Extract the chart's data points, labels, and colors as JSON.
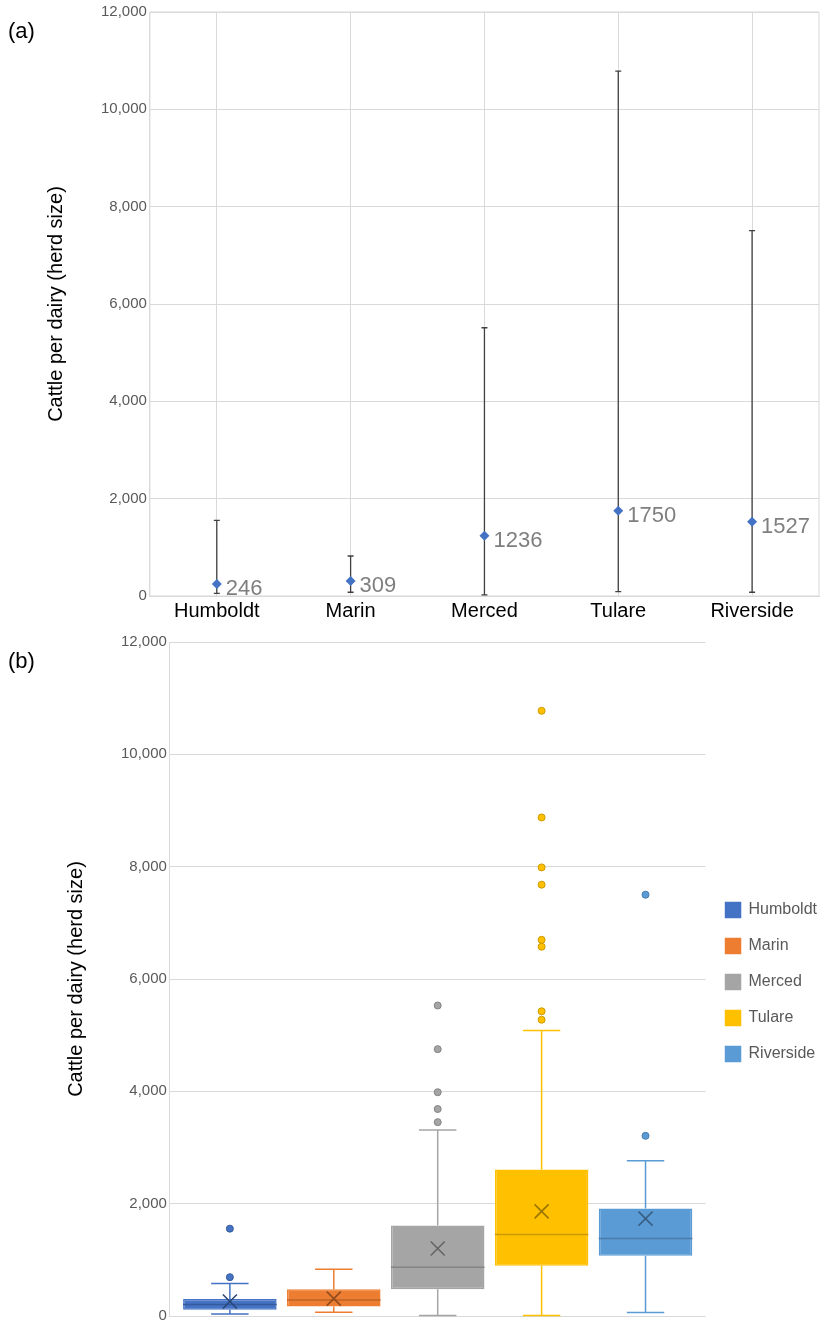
{
  "chart_data": [
    {
      "type": "scatter",
      "title": "(a)",
      "ylabel": "Cattle per dairy (herd size)",
      "categories": [
        "Humboldt",
        "Marin",
        "Merced",
        "Tulare",
        "Riverside"
      ],
      "series": [
        {
          "color": "#4472c4",
          "values": [
            246,
            309,
            1236,
            1750,
            1527
          ],
          "errors": [
            [
              55,
              1556
            ],
            [
              77,
              822
            ],
            [
              22,
              5512
            ],
            [
              88,
              10784
            ],
            [
              77,
              7507
            ]
          ]
        }
      ],
      "data_labels": true,
      "marker": "diamond",
      "ylim": [
        0,
        12000
      ],
      "yticks": [
        0,
        {
          "value": 2000,
          "label": "2,000"
        },
        {
          "value": 4000,
          "label": "4,000"
        },
        {
          "value": 6000,
          "label": "6,000"
        },
        {
          "value": 8000,
          "label": "8,000"
        },
        {
          "value": 10000,
          "label": "10,000"
        },
        {
          "value": 12000,
          "label": "12,000"
        }
      ],
      "grid": true
    },
    {
      "type": "box",
      "title": "(b)",
      "ylabel": "Cattle per dairy (herd size)",
      "categories": [
        null
      ],
      "series": [
        {
          "name": "Humboldt",
          "color": "#4472c4",
          "boxes": [
            {
              "low": 37,
              "q1": 111,
              "median": 204,
              "q3": 302,
              "high": 580,
              "mean": 259,
              "outliers": [
                691,
                1555
              ]
            }
          ]
        },
        {
          "name": "Marin",
          "color": "#ed7d31",
          "boxes": [
            {
              "low": 68,
              "q1": 167,
              "median": 284,
              "q3": 475,
              "high": 833,
              "mean": 309
            }
          ]
        },
        {
          "name": "Merced",
          "color": "#a5a5a5",
          "boxes": [
            {
              "low": 10,
              "q1": 475,
              "median": 870,
              "q3": 1610,
              "high": 3313,
              "mean": 1203,
              "outliers": [
                3451,
                3685,
                3984,
                4751,
                5528
              ]
            }
          ]
        },
        {
          "name": "Tulare",
          "color": "#ffc000",
          "boxes": [
            {
              "low": 10,
              "q1": 895,
              "median": 1450,
              "q3": 2610,
              "high": 5084,
              "mean": 1863,
              "outliers": [
                5275,
                5425,
                6575,
                6697,
                7679,
                7987,
                8876,
                10775
              ]
            }
          ]
        },
        {
          "name": "Riverside",
          "color": "#5b9bd5",
          "boxes": [
            {
              "low": 62,
              "q1": 1074,
              "median": 1382,
              "q3": 1913,
              "high": 2764,
              "mean": 1734,
              "outliers": [
                3208,
                7501
              ]
            }
          ]
        }
      ],
      "ylim": [
        0,
        12000
      ],
      "yticks": [
        0,
        {
          "value": 2000,
          "label": "2,000"
        },
        {
          "value": 4000,
          "label": "4,000"
        },
        {
          "value": 6000,
          "label": "6,000"
        },
        {
          "value": 8000,
          "label": "8,000"
        },
        {
          "value": 10000,
          "label": "10,000"
        },
        {
          "value": 12000,
          "label": "12,000"
        }
      ],
      "grid": "y",
      "legend": "right",
      "tick_labels": "y"
    }
  ]
}
